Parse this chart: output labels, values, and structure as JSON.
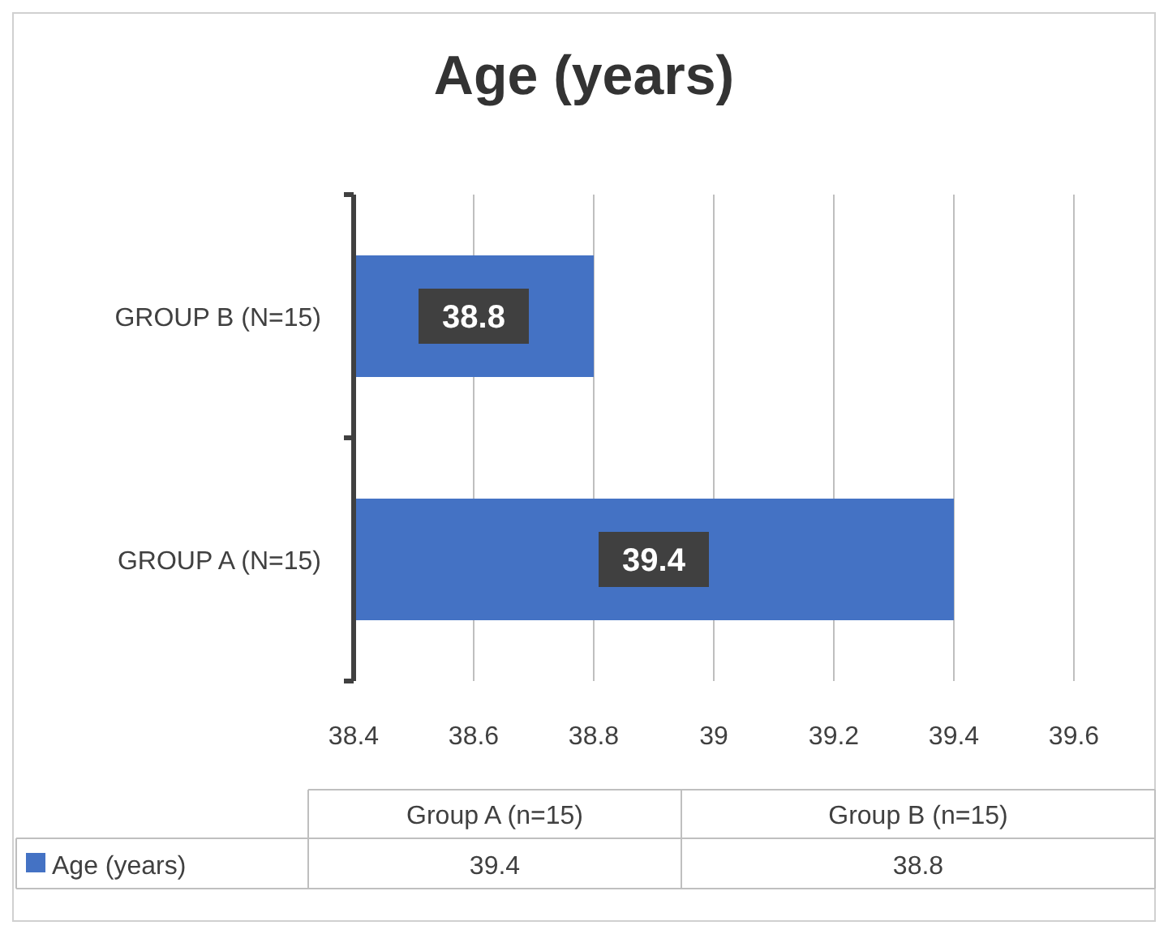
{
  "chart_data": {
    "type": "bar",
    "orientation": "horizontal",
    "title": "Age (years)",
    "categories": [
      "GROUP B (N=15)",
      "GROUP A (N=15)"
    ],
    "series": [
      {
        "name": "Age (years)",
        "color": "#4472c4",
        "values": [
          38.8,
          39.4
        ]
      }
    ],
    "xlim": [
      38.4,
      39.6
    ],
    "xticks": [
      38.4,
      38.6,
      38.8,
      {
        "value": 39,
        "label": "39"
      },
      39.2,
      39.4,
      39.6
    ],
    "grid": "x",
    "data_labels": true,
    "legend": "bottom",
    "annotations": [
      "Group A (n=15)",
      "Group B (n=15)",
      "39.4",
      "38.8"
    ]
  }
}
